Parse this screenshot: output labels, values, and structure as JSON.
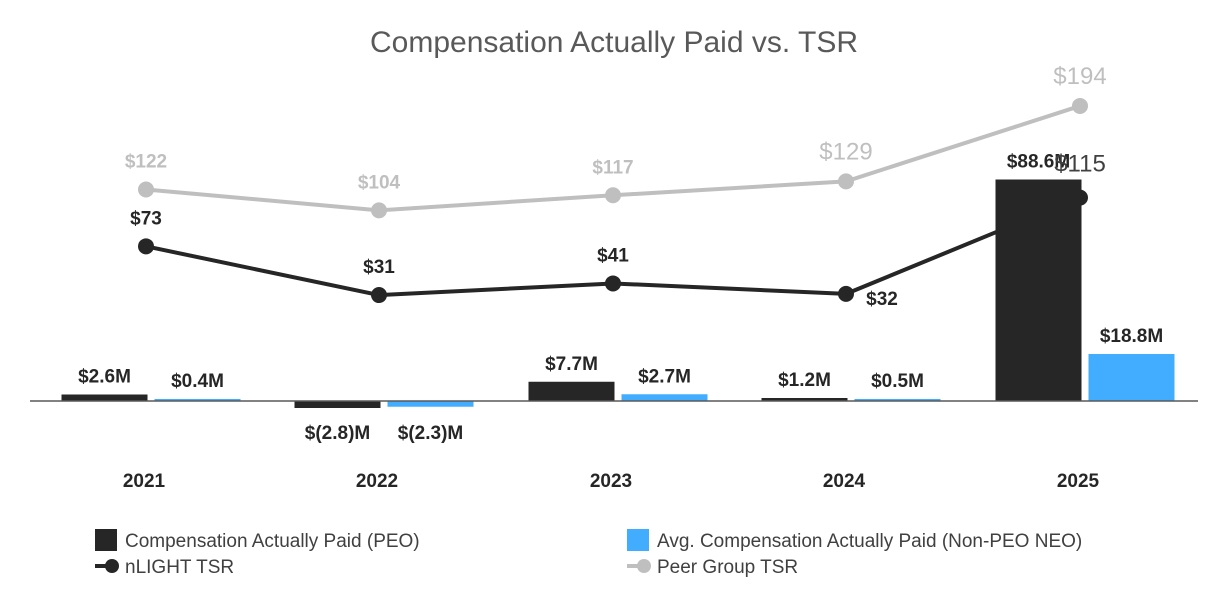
{
  "chart_data": {
    "type": "bar",
    "title": "Compensation Actually Paid vs. TSR",
    "categories": [
      "2021",
      "2022",
      "2023",
      "2024",
      "2025"
    ],
    "series": [
      {
        "name": "Compensation Actually Paid (PEO)",
        "kind": "bar",
        "color": "#262626",
        "values": [
          2.6,
          -2.8,
          7.7,
          1.2,
          88.6
        ],
        "labels": [
          "$2.6M",
          "$(2.8)M",
          "$7.7M",
          "$1.2M",
          "$88.6M"
        ]
      },
      {
        "name": "Avg. Compensation Actually Paid (Non-PEO NEO)",
        "kind": "bar",
        "color": "#42adff",
        "values": [
          0.4,
          -2.3,
          2.7,
          0.5,
          18.8
        ],
        "labels": [
          "$0.4M",
          "$(2.3)M",
          "$2.7M",
          "$0.5M",
          "$18.8M"
        ]
      },
      {
        "name": "nLIGHT TSR",
        "kind": "line",
        "color": "#262626",
        "values": [
          73,
          31,
          41,
          32,
          115
        ],
        "labels": [
          "$73",
          "$31",
          "$41",
          "$32",
          "$115"
        ]
      },
      {
        "name": "Peer Group TSR",
        "kind": "line",
        "color": "#bfbfbf",
        "values": [
          122,
          104,
          117,
          129,
          194
        ],
        "labels": [
          "$122",
          "$104",
          "$117",
          "$129",
          "$194"
        ]
      }
    ],
    "legend": [
      "Compensation Actually Paid (PEO)",
      "Avg. Compensation Actually Paid (Non-PEO NEO)",
      "nLIGHT TSR",
      "Peer Group TSR"
    ],
    "legend_position": "bottom",
    "grid": false
  }
}
